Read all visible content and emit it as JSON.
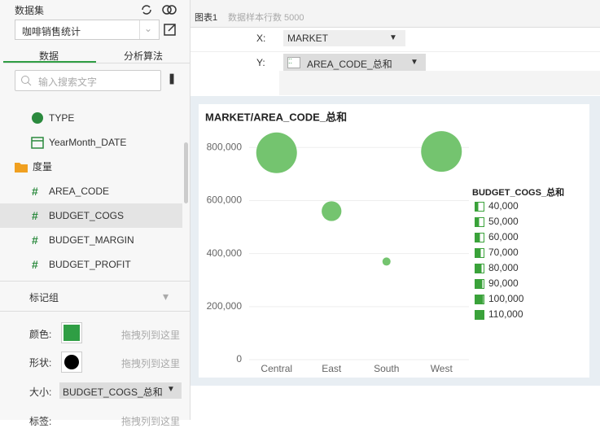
{
  "sidebar": {
    "title": "数据集",
    "dataset": "咖啡销售统计",
    "tabs": [
      "数据",
      "分析算法"
    ],
    "search_placeholder": "输入搜索文字",
    "dimensions": [
      "TYPE",
      "YearMonth_DATE"
    ],
    "measure_folder": "度量",
    "measures": [
      "AREA_CODE",
      "BUDGET_COGS",
      "BUDGET_MARGIN",
      "BUDGET_PROFIT"
    ]
  },
  "marks": {
    "title": "标记组",
    "color_label": "颜色:",
    "color_drop": "拖拽列到这里",
    "shape_label": "形状:",
    "shape_drop": "拖拽列到这里",
    "size_label": "大小:",
    "size_value": "BUDGET_COGS_总和",
    "label_label": "标签:",
    "label_drop": "拖拽列到这里"
  },
  "header": {
    "chart_name": "图表1",
    "sample_rows": "数据样本行数 5000"
  },
  "shelves": {
    "x_label": "X:",
    "x_value": "MARKET",
    "y_label": "Y:",
    "y_value": "AREA_CODE_总和"
  },
  "chart_data": {
    "type": "bubble",
    "title": "MARKET/AREA_CODE_总和",
    "categories": [
      "Central",
      "East",
      "South",
      "West"
    ],
    "values": [
      780000,
      560000,
      370000,
      785000
    ],
    "sizes": [
      110000,
      65000,
      40000,
      110000
    ],
    "color": "#74c46f",
    "ylim": [
      0,
      850000
    ],
    "yticks": [
      0,
      {
        "value": 200000,
        "label": "200,000"
      },
      {
        "value": 400000,
        "label": "400,000"
      },
      {
        "value": 600000,
        "label": "600,000"
      },
      {
        "value": 800000,
        "label": "800,000"
      }
    ],
    "grid": true,
    "size_legend": {
      "title": "BUDGET_COGS_总和",
      "color": "#3aa23a",
      "entries": [
        {
          "value": 40000,
          "label": "40,000"
        },
        {
          "value": 50000,
          "label": "50,000"
        },
        {
          "value": 60000,
          "label": "60,000"
        },
        {
          "value": 70000,
          "label": "70,000"
        },
        {
          "value": 80000,
          "label": "80,000"
        },
        {
          "value": 90000,
          "label": "90,000"
        },
        {
          "value": 100000,
          "label": "100,000"
        },
        {
          "value": 110000,
          "label": "110,000"
        }
      ]
    }
  }
}
